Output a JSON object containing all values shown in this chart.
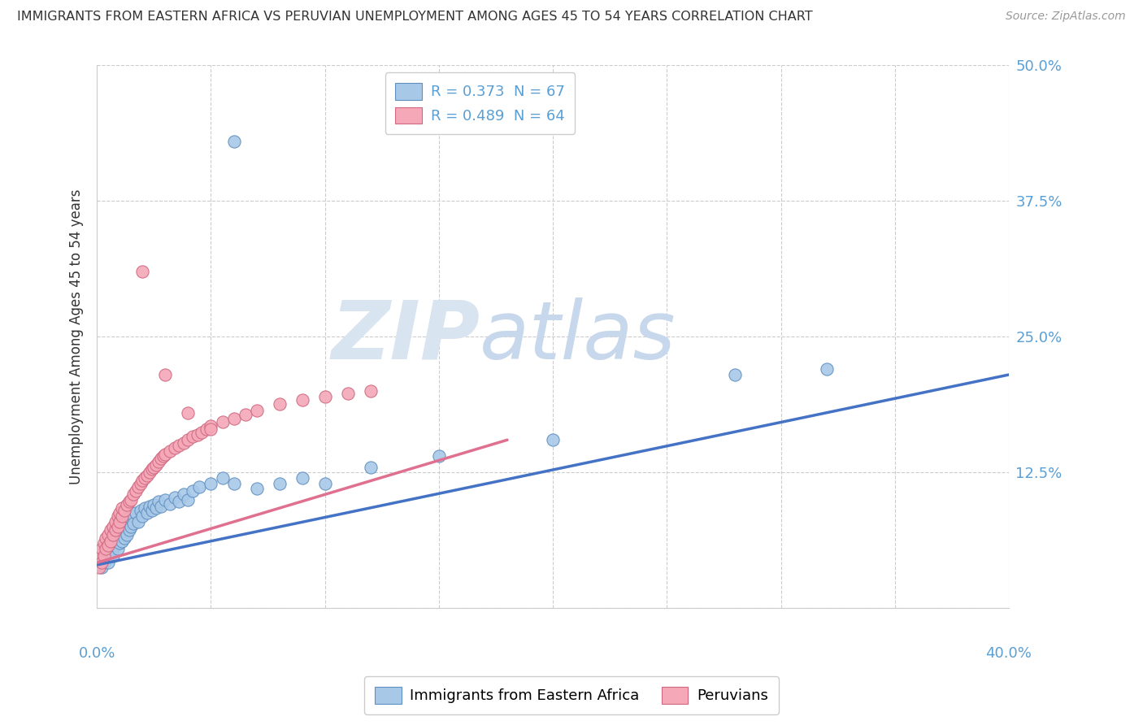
{
  "title": "IMMIGRANTS FROM EASTERN AFRICA VS PERUVIAN UNEMPLOYMENT AMONG AGES 45 TO 54 YEARS CORRELATION CHART",
  "source": "Source: ZipAtlas.com",
  "ylabel_label": "Unemployment Among Ages 45 to 54 years",
  "series1_label": "Immigrants from Eastern Africa",
  "series2_label": "Peruvians",
  "series1_color": "#a8c8e8",
  "series2_color": "#f4a8b8",
  "series1_edge_color": "#6090c0",
  "series2_edge_color": "#d06880",
  "series1_line_color": "#4472c4",
  "series2_line_color": "#e07090",
  "series1_R": 0.373,
  "series1_N": 67,
  "series2_R": 0.489,
  "series2_N": 64,
  "xmin": 0.0,
  "xmax": 0.4,
  "ymin": 0.0,
  "ymax": 0.5,
  "yticks": [
    0.0,
    0.125,
    0.25,
    0.375,
    0.5
  ],
  "xticks": [
    0.0,
    0.05,
    0.1,
    0.15,
    0.2,
    0.25,
    0.3,
    0.35,
    0.4
  ],
  "grid_color": "#cccccc",
  "tick_color": "#5a9fd4",
  "title_fontsize": 11.5,
  "source_fontsize": 10,
  "axis_label_fontsize": 12,
  "tick_fontsize": 13,
  "legend_fontsize": 13,
  "watermark_zip_color": "#d8e4f0",
  "watermark_atlas_color": "#c8d8ec",
  "blue_points_x": [
    0.001,
    0.002,
    0.002,
    0.003,
    0.003,
    0.004,
    0.004,
    0.005,
    0.005,
    0.005,
    0.006,
    0.006,
    0.007,
    0.007,
    0.007,
    0.008,
    0.008,
    0.009,
    0.009,
    0.01,
    0.01,
    0.01,
    0.011,
    0.011,
    0.012,
    0.012,
    0.013,
    0.013,
    0.014,
    0.014,
    0.015,
    0.015,
    0.016,
    0.016,
    0.017,
    0.018,
    0.019,
    0.02,
    0.021,
    0.022,
    0.023,
    0.024,
    0.025,
    0.026,
    0.027,
    0.028,
    0.03,
    0.032,
    0.034,
    0.036,
    0.038,
    0.04,
    0.042,
    0.045,
    0.05,
    0.055,
    0.06,
    0.07,
    0.08,
    0.09,
    0.1,
    0.12,
    0.15,
    0.2,
    0.28,
    0.32,
    0.06
  ],
  "blue_points_y": [
    0.04,
    0.038,
    0.045,
    0.042,
    0.05,
    0.044,
    0.055,
    0.048,
    0.042,
    0.058,
    0.052,
    0.06,
    0.055,
    0.048,
    0.065,
    0.058,
    0.07,
    0.062,
    0.055,
    0.068,
    0.06,
    0.075,
    0.07,
    0.062,
    0.072,
    0.065,
    0.078,
    0.068,
    0.08,
    0.072,
    0.082,
    0.075,
    0.085,
    0.078,
    0.088,
    0.08,
    0.09,
    0.085,
    0.092,
    0.088,
    0.094,
    0.09,
    0.095,
    0.092,
    0.098,
    0.094,
    0.1,
    0.096,
    0.102,
    0.098,
    0.105,
    0.1,
    0.108,
    0.112,
    0.115,
    0.12,
    0.115,
    0.11,
    0.115,
    0.12,
    0.115,
    0.13,
    0.14,
    0.155,
    0.215,
    0.22,
    0.43
  ],
  "pink_points_x": [
    0.001,
    0.001,
    0.002,
    0.002,
    0.003,
    0.003,
    0.004,
    0.004,
    0.005,
    0.005,
    0.006,
    0.006,
    0.007,
    0.007,
    0.008,
    0.008,
    0.009,
    0.009,
    0.01,
    0.01,
    0.011,
    0.011,
    0.012,
    0.013,
    0.014,
    0.015,
    0.016,
    0.017,
    0.018,
    0.019,
    0.02,
    0.021,
    0.022,
    0.023,
    0.024,
    0.025,
    0.026,
    0.027,
    0.028,
    0.029,
    0.03,
    0.032,
    0.034,
    0.036,
    0.038,
    0.04,
    0.042,
    0.044,
    0.046,
    0.048,
    0.05,
    0.055,
    0.06,
    0.065,
    0.07,
    0.08,
    0.09,
    0.1,
    0.11,
    0.12,
    0.03,
    0.04,
    0.05,
    0.02
  ],
  "pink_points_y": [
    0.038,
    0.05,
    0.042,
    0.055,
    0.048,
    0.06,
    0.055,
    0.065,
    0.058,
    0.068,
    0.062,
    0.072,
    0.068,
    0.075,
    0.072,
    0.08,
    0.075,
    0.085,
    0.08,
    0.088,
    0.085,
    0.092,
    0.09,
    0.095,
    0.098,
    0.1,
    0.105,
    0.108,
    0.112,
    0.115,
    0.118,
    0.12,
    0.122,
    0.125,
    0.128,
    0.13,
    0.132,
    0.135,
    0.138,
    0.14,
    0.142,
    0.145,
    0.148,
    0.15,
    0.152,
    0.155,
    0.158,
    0.16,
    0.162,
    0.165,
    0.168,
    0.172,
    0.175,
    0.178,
    0.182,
    0.188,
    0.192,
    0.195,
    0.198,
    0.2,
    0.215,
    0.18,
    0.165,
    0.31
  ],
  "blue_trend_x0": 0.0,
  "blue_trend_y0": 0.04,
  "blue_trend_x1": 0.4,
  "blue_trend_y1": 0.215,
  "pink_trend_x0": 0.0,
  "pink_trend_y0": 0.042,
  "pink_trend_x1": 0.18,
  "pink_trend_y1": 0.155
}
